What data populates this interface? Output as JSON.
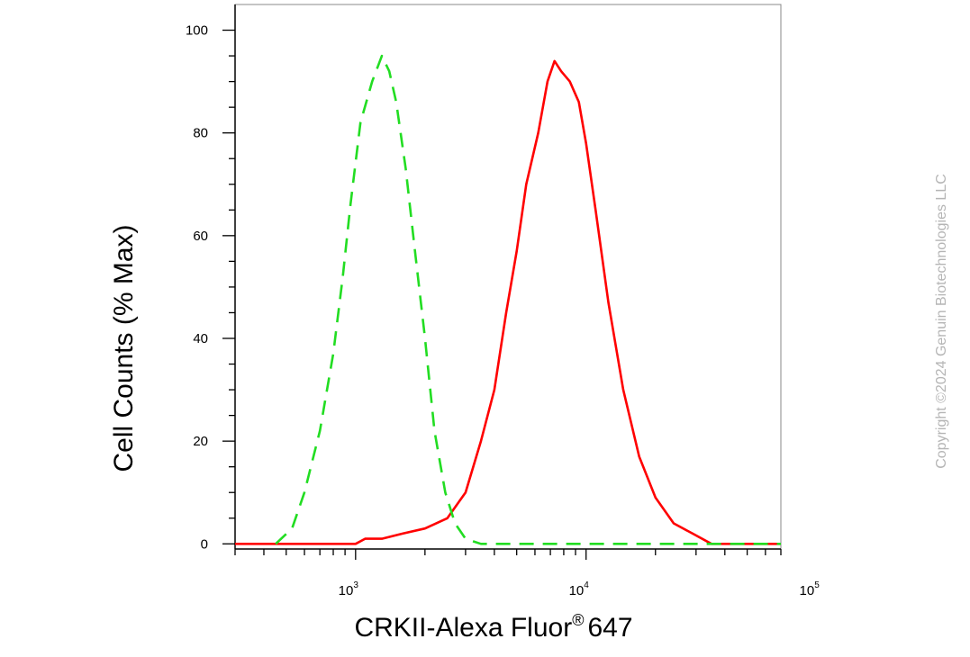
{
  "chart_data": {
    "type": "line",
    "xlabel": "CRKII-Alexa Fluor",
    "xlabel_sup": "®",
    "xlabel_suffix": "647",
    "ylabel": "Cell Counts (% Max)",
    "xscale": "log",
    "xlim": [
      300,
      70000
    ],
    "ylim": [
      -1,
      105
    ],
    "y_ticks": [
      0,
      20,
      40,
      60,
      80,
      100
    ],
    "x_ticks": [
      {
        "value": 1000,
        "base": "10",
        "exp": "3"
      },
      {
        "value": 10000,
        "base": "10",
        "exp": "4"
      },
      {
        "value": 100000,
        "base": "10",
        "exp": "5"
      }
    ],
    "series": [
      {
        "color": "#ff0000",
        "style": "solid",
        "points": [
          [
            300,
            0
          ],
          [
            800,
            0
          ],
          [
            1000,
            0
          ],
          [
            1100,
            1
          ],
          [
            1300,
            1
          ],
          [
            1600,
            2
          ],
          [
            2000,
            3
          ],
          [
            2500,
            5
          ],
          [
            3000,
            10
          ],
          [
            3500,
            20
          ],
          [
            4000,
            30
          ],
          [
            4500,
            45
          ],
          [
            5000,
            57
          ],
          [
            5500,
            70
          ],
          [
            6200,
            80
          ],
          [
            6800,
            90
          ],
          [
            7300,
            94
          ],
          [
            7800,
            92
          ],
          [
            8500,
            90
          ],
          [
            9300,
            86
          ],
          [
            10000,
            78
          ],
          [
            11000,
            65
          ],
          [
            12500,
            47
          ],
          [
            14500,
            30
          ],
          [
            17000,
            17
          ],
          [
            20000,
            9
          ],
          [
            24000,
            4
          ],
          [
            29000,
            2
          ],
          [
            35000,
            0
          ],
          [
            45000,
            0
          ],
          [
            70000,
            0
          ]
        ]
      },
      {
        "color": "#22dd22",
        "style": "dashed",
        "points": [
          [
            450,
            0
          ],
          [
            530,
            3
          ],
          [
            600,
            10
          ],
          [
            700,
            22
          ],
          [
            800,
            37
          ],
          [
            880,
            52
          ],
          [
            950,
            66
          ],
          [
            1050,
            82
          ],
          [
            1180,
            90
          ],
          [
            1300,
            95
          ],
          [
            1400,
            92
          ],
          [
            1500,
            86
          ],
          [
            1650,
            73
          ],
          [
            1800,
            58
          ],
          [
            2000,
            40
          ],
          [
            2200,
            22
          ],
          [
            2450,
            10
          ],
          [
            2700,
            4
          ],
          [
            3000,
            1
          ],
          [
            3500,
            0
          ],
          [
            5000,
            0
          ],
          [
            10000,
            0
          ],
          [
            30000,
            0
          ],
          [
            70000,
            0
          ]
        ]
      }
    ]
  },
  "copyright": "Copyright ©2024 Genuin Biotechnologies LLC"
}
